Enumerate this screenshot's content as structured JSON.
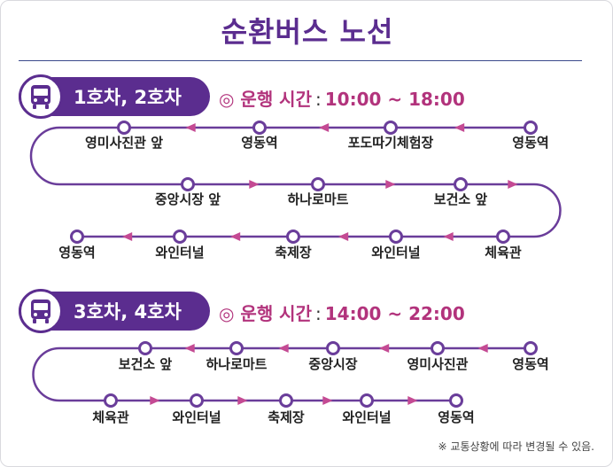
{
  "title": "순환버스 노선",
  "routes": [
    {
      "name": "1호차, 2호차",
      "hours_label": "◎ 운행 시간",
      "hours_sep": ":",
      "hours_value": "10:00 ~ 18:00",
      "rows": [
        [
          "영동역",
          "포도따기체험장",
          "영동역",
          "영미사진관 앞"
        ],
        [
          "중앙시장 앞",
          "하나로마트",
          "보건소 앞"
        ],
        [
          "체육관",
          "와인터널",
          "축제장",
          "와인터널",
          "영동역"
        ]
      ]
    },
    {
      "name": "3호차, 4호차",
      "hours_label": "◎ 운행 시간",
      "hours_sep": ":",
      "hours_value": "14:00 ~ 22:00",
      "rows": [
        [
          "영동역",
          "영미사진관",
          "중앙시장",
          "하나로마트",
          "보건소 앞"
        ],
        [
          "체육관",
          "와인터널",
          "축제장",
          "와인터널",
          "영동역"
        ]
      ]
    }
  ],
  "note": "※ 교통상황에 따라 변경될 수 있음.",
  "colors": {
    "primary": "#5b2d8f",
    "accent": "#b2337c",
    "line": "#6a3d9a",
    "arrow": "#c44a93"
  }
}
